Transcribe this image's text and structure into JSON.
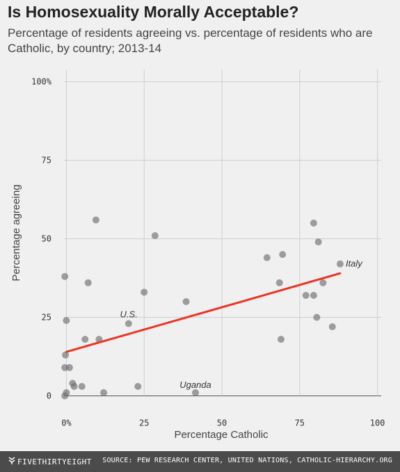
{
  "chart_data": {
    "type": "scatter",
    "title": "Is Homosexuality Morally Acceptable?",
    "subtitle": "Percentage of residents agreeing vs. percentage of residents who are Catholic, by country; 2013-14",
    "xlabel": "Percentage Catholic",
    "ylabel": "Percentage agreeing",
    "xlim": [
      -3,
      103
    ],
    "ylim": [
      -3,
      105
    ],
    "x_ticks": [
      0,
      25,
      50,
      75,
      100
    ],
    "x_tick_labels": [
      "0%",
      "25",
      "50",
      "75",
      "100"
    ],
    "y_ticks": [
      0,
      25,
      50,
      75,
      100
    ],
    "y_tick_labels": [
      "0",
      "25",
      "50",
      "75",
      "100%"
    ],
    "grid": true,
    "points": [
      {
        "x": -0.5,
        "y": 0
      },
      {
        "x": 0,
        "y": 1
      },
      {
        "x": -0.5,
        "y": 38
      },
      {
        "x": 0,
        "y": 24
      },
      {
        "x": -0.3,
        "y": 13
      },
      {
        "x": -0.5,
        "y": 9
      },
      {
        "x": 1,
        "y": 9
      },
      {
        "x": 2,
        "y": 4
      },
      {
        "x": 2.5,
        "y": 3
      },
      {
        "x": 5,
        "y": 3
      },
      {
        "x": 6,
        "y": 18
      },
      {
        "x": 7,
        "y": 36
      },
      {
        "x": 9.5,
        "y": 56
      },
      {
        "x": 10.5,
        "y": 18
      },
      {
        "x": 12,
        "y": 1
      },
      {
        "x": 20,
        "y": 23
      },
      {
        "x": 23,
        "y": 3
      },
      {
        "x": 28.5,
        "y": 51
      },
      {
        "x": 25,
        "y": 33
      },
      {
        "x": 38.5,
        "y": 30
      },
      {
        "x": 41.5,
        "y": 1
      },
      {
        "x": 64.5,
        "y": 44
      },
      {
        "x": 68.5,
        "y": 36
      },
      {
        "x": 69,
        "y": 18
      },
      {
        "x": 69.5,
        "y": 45
      },
      {
        "x": 77,
        "y": 32
      },
      {
        "x": 79.5,
        "y": 55
      },
      {
        "x": 79.5,
        "y": 32
      },
      {
        "x": 81,
        "y": 49
      },
      {
        "x": 80.5,
        "y": 25
      },
      {
        "x": 82.5,
        "y": 36
      },
      {
        "x": 85.5,
        "y": 22
      },
      {
        "x": 88,
        "y": 42
      }
    ],
    "trendline": {
      "x": [
        0,
        88
      ],
      "y": [
        14,
        39
      ]
    },
    "annotations": [
      {
        "text": "U.S.",
        "x": 20,
        "y": 23
      },
      {
        "text": "Uganda",
        "x": 41.5,
        "y": 1
      },
      {
        "text": "Italy",
        "x": 88,
        "y": 42
      }
    ]
  },
  "footer": {
    "brand": "FIVETHIRTYEIGHT",
    "source": "SOURCE: PEW RESEARCH CENTER, UNITED NATIONS, CATHOLIC-HIERARCHY.ORG"
  }
}
